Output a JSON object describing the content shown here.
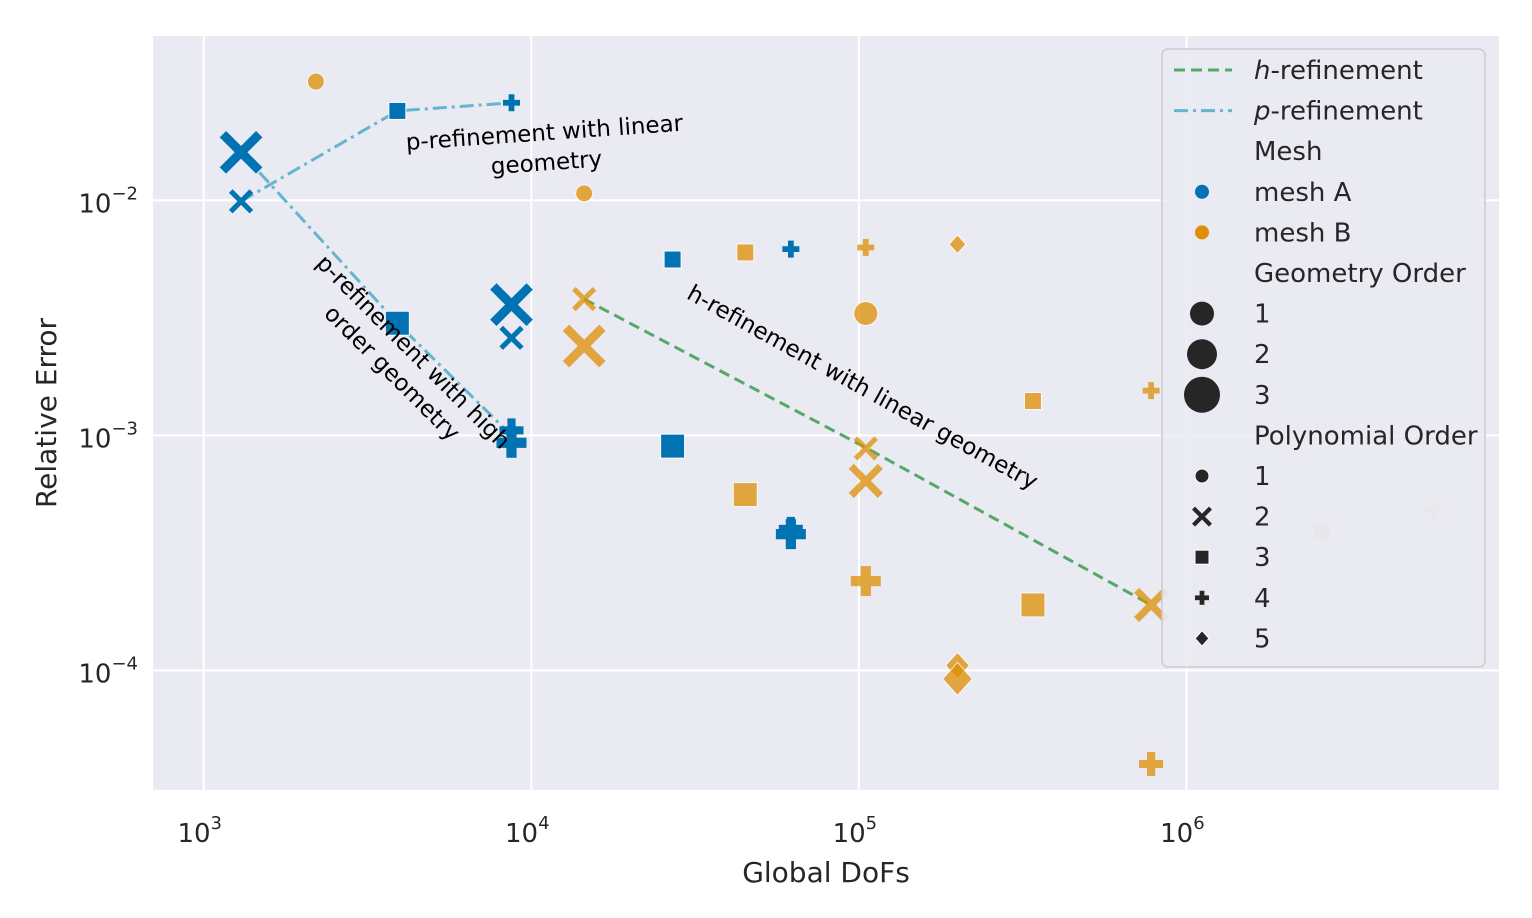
{
  "chart_data": {
    "type": "scatter",
    "xlabel": "Global DoFs",
    "ylabel": "Relative Error",
    "x_scale": "log",
    "y_scale": "log",
    "xlim": [
      700,
      9000000
    ],
    "ylim": [
      3.1e-05,
      0.05
    ],
    "x_ticks": [
      {
        "value": 1000,
        "base": "10",
        "exp": "3"
      },
      {
        "value": 10000,
        "base": "10",
        "exp": "4"
      },
      {
        "value": 100000,
        "base": "10",
        "exp": "5"
      },
      {
        "value": 1000000,
        "base": "10",
        "exp": "6"
      }
    ],
    "y_ticks": [
      {
        "value": 0.01,
        "base": "10",
        "exp": "−2"
      },
      {
        "value": 0.001,
        "base": "10",
        "exp": "−3"
      },
      {
        "value": 0.0001,
        "base": "10",
        "exp": "−4"
      }
    ],
    "grid": true,
    "background": "#eaeaf2",
    "legend_position": "top-right",
    "colors": {
      "mesh_a": "#0173b2",
      "mesh_b": "#de8f05",
      "h_line": "#55a868",
      "p_line": "#64b5cd"
    },
    "lines": [
      {
        "kind": "h",
        "points": [
          [
            14500,
            0.0038
          ],
          [
            106000,
            0.00088
          ],
          [
            780000,
            0.00019
          ]
        ]
      },
      {
        "kind": "p",
        "points": [
          [
            1300,
            0.0099
          ],
          [
            3900,
            0.024
          ],
          [
            8700,
            0.026
          ]
        ]
      },
      {
        "kind": "p",
        "points": [
          [
            1300,
            0.016
          ],
          [
            3900,
            0.003
          ],
          [
            8700,
            0.001
          ]
        ]
      }
    ],
    "points": [
      {
        "x": 1300,
        "y": 0.016,
        "mesh": "A",
        "geom": 3,
        "poly": 2
      },
      {
        "x": 1300,
        "y": 0.0099,
        "mesh": "A",
        "geom": 1,
        "poly": 2
      },
      {
        "x": 2200,
        "y": 0.032,
        "mesh": "B",
        "geom": 1,
        "poly": 1
      },
      {
        "x": 3900,
        "y": 0.024,
        "mesh": "A",
        "geom": 1,
        "poly": 3
      },
      {
        "x": 3900,
        "y": 0.003,
        "mesh": "A",
        "geom": 2,
        "poly": 3
      },
      {
        "x": 8700,
        "y": 0.026,
        "mesh": "A",
        "geom": 1,
        "poly": 4
      },
      {
        "x": 8700,
        "y": 0.0036,
        "mesh": "A",
        "geom": 3,
        "poly": 2
      },
      {
        "x": 8700,
        "y": 0.0026,
        "mesh": "A",
        "geom": 1,
        "poly": 2
      },
      {
        "x": 8700,
        "y": 0.00105,
        "mesh": "A",
        "geom": 2,
        "poly": 4
      },
      {
        "x": 8700,
        "y": 0.00093,
        "mesh": "A",
        "geom": 3,
        "poly": 4
      },
      {
        "x": 14500,
        "y": 0.0107,
        "mesh": "B",
        "geom": 1,
        "poly": 1
      },
      {
        "x": 14500,
        "y": 0.0038,
        "mesh": "B",
        "geom": 1,
        "poly": 2
      },
      {
        "x": 14500,
        "y": 0.0024,
        "mesh": "B",
        "geom": 3,
        "poly": 2
      },
      {
        "x": 27000,
        "y": 0.0056,
        "mesh": "A",
        "geom": 1,
        "poly": 3
      },
      {
        "x": 27000,
        "y": 0.0009,
        "mesh": "A",
        "geom": 2,
        "poly": 3
      },
      {
        "x": 45000,
        "y": 0.006,
        "mesh": "B",
        "geom": 1,
        "poly": 3
      },
      {
        "x": 45000,
        "y": 0.00056,
        "mesh": "B",
        "geom": 2,
        "poly": 3
      },
      {
        "x": 62000,
        "y": 0.0062,
        "mesh": "A",
        "geom": 1,
        "poly": 4
      },
      {
        "x": 62000,
        "y": 0.0004,
        "mesh": "A",
        "geom": 2,
        "poly": 4
      },
      {
        "x": 62000,
        "y": 0.00038,
        "mesh": "A",
        "geom": 3,
        "poly": 4
      },
      {
        "x": 105000,
        "y": 0.0063,
        "mesh": "B",
        "geom": 1,
        "poly": 4
      },
      {
        "x": 105000,
        "y": 0.0033,
        "mesh": "B",
        "geom": 2,
        "poly": 1
      },
      {
        "x": 105000,
        "y": 0.00088,
        "mesh": "B",
        "geom": 1,
        "poly": 2
      },
      {
        "x": 105000,
        "y": 0.00064,
        "mesh": "B",
        "geom": 2,
        "poly": 2
      },
      {
        "x": 105000,
        "y": 0.00024,
        "mesh": "B",
        "geom": 3,
        "poly": 4
      },
      {
        "x": 200000,
        "y": 0.0065,
        "mesh": "B",
        "geom": 1,
        "poly": 5
      },
      {
        "x": 200000,
        "y": 0.000105,
        "mesh": "B",
        "geom": 2,
        "poly": 5
      },
      {
        "x": 200000,
        "y": 9.2e-05,
        "mesh": "B",
        "geom": 3,
        "poly": 5
      },
      {
        "x": 340000,
        "y": 0.0014,
        "mesh": "B",
        "geom": 1,
        "poly": 3
      },
      {
        "x": 340000,
        "y": 0.00019,
        "mesh": "B",
        "geom": 2,
        "poly": 3
      },
      {
        "x": 780000,
        "y": 0.00155,
        "mesh": "B",
        "geom": 1,
        "poly": 4
      },
      {
        "x": 780000,
        "y": 0.00019,
        "mesh": "B",
        "geom": 2,
        "poly": 2
      },
      {
        "x": 780000,
        "y": 4e-05,
        "mesh": "B",
        "geom": 2,
        "poly": 4
      },
      {
        "x": 2600000,
        "y": 0.00039,
        "mesh": "B",
        "geom": 1,
        "poly": 3
      },
      {
        "x": 5700000,
        "y": 0.00048,
        "mesh": "B",
        "geom": 1,
        "poly": 4
      }
    ],
    "annotations": [
      {
        "text_lines": [
          "p-refinement with linear",
          "geometry"
        ],
        "x": 11000,
        "y": 0.018,
        "angle": -4
      },
      {
        "text_lines": [
          "p-refinement with high",
          "order geometry"
        ],
        "x": 4200,
        "y": 0.00215,
        "angle": 45
      },
      {
        "text_lines": [
          "h-refinement with linear geometry"
        ],
        "x": 100000,
        "y": 0.0015,
        "angle": 29
      }
    ],
    "legend": {
      "h_label_italic": "h",
      "h_label_rest": "-refinement",
      "p_label_italic": "p",
      "p_label_rest": "-refinement",
      "mesh_title": "Mesh",
      "mesh_items": [
        "mesh A",
        "mesh B"
      ],
      "geom_title": "Geometry Order",
      "geom_items": [
        "1",
        "2",
        "3"
      ],
      "poly_title": "Polynomial Order",
      "poly_items": [
        "1",
        "2",
        "3",
        "4",
        "5"
      ]
    }
  }
}
